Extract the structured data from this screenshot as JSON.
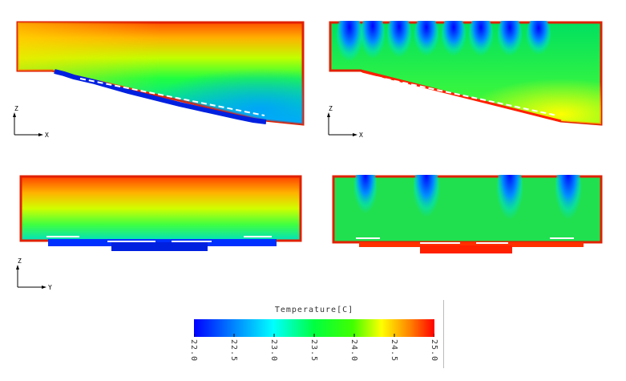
{
  "panels": [
    {
      "name": "side-view-left",
      "axes": [
        "z",
        "x"
      ]
    },
    {
      "name": "side-view-right",
      "axes": [
        "z",
        "x"
      ]
    },
    {
      "name": "front-view-left",
      "axes": [
        "z",
        "y"
      ]
    },
    {
      "name": "front-view-right",
      "axes": []
    }
  ],
  "axis_labels": {
    "a1": {
      "up": "Z",
      "right": "X"
    },
    "a2": {
      "up": "Z",
      "right": "X"
    },
    "a3": {
      "up": "Z",
      "right": "Y"
    }
  },
  "legend": {
    "title": "Temperature[C]",
    "ticks": [
      "22.0",
      "22.5",
      "23.0",
      "23.5",
      "24.0",
      "24.5",
      "25.0"
    ],
    "min": 22.0,
    "max": 25.0,
    "colors": [
      "#0000ff",
      "#00a0ff",
      "#00ffff",
      "#00ff66",
      "#00ff00",
      "#a0ff00",
      "#ffff00",
      "#ff9000",
      "#ff0000"
    ]
  }
}
